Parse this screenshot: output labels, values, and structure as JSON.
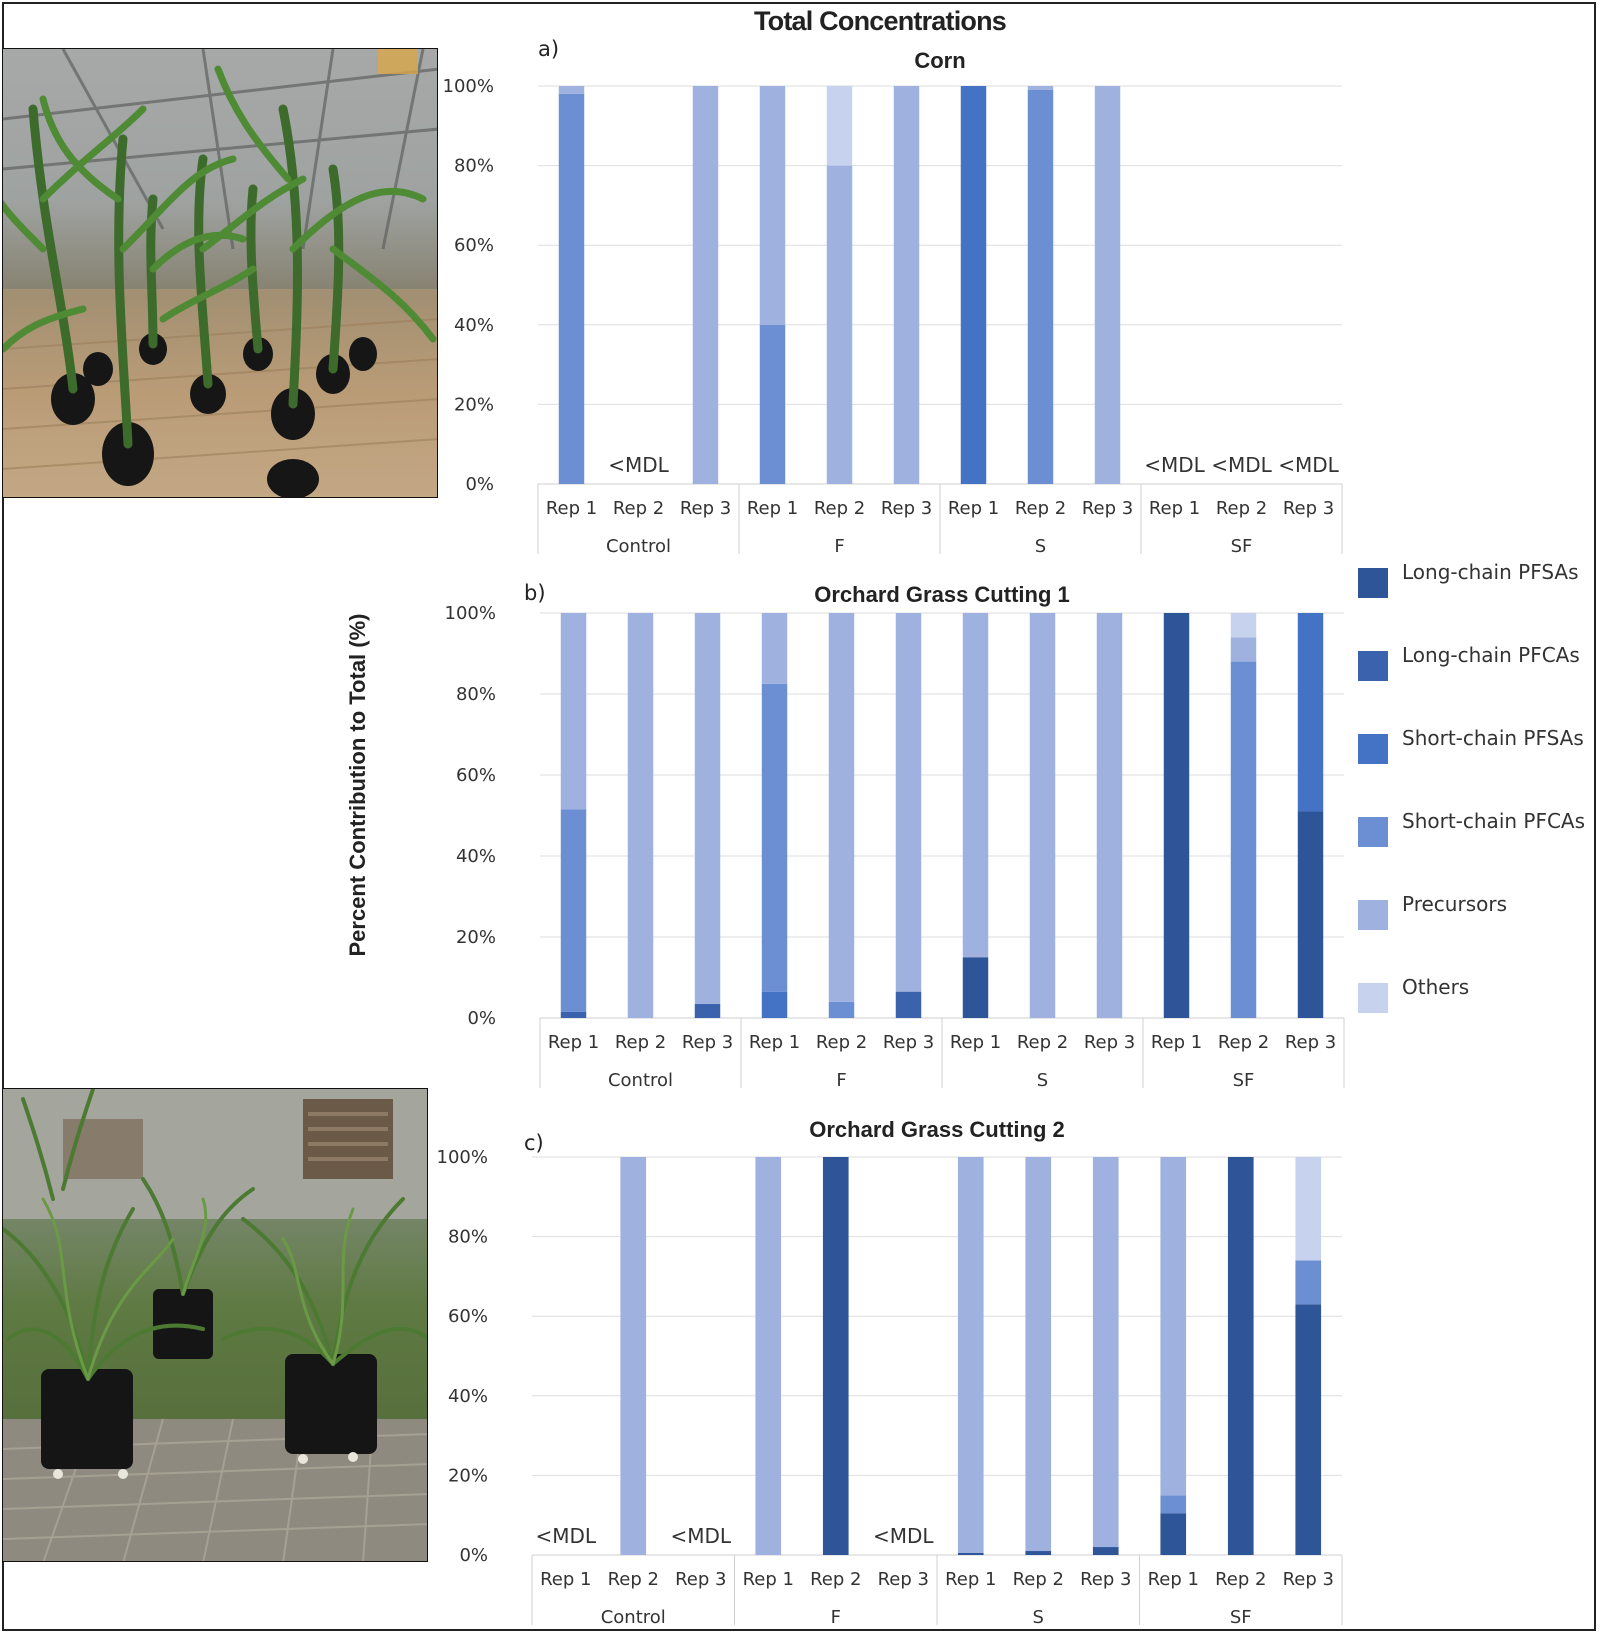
{
  "figure": {
    "title": "Total Concentrations",
    "y_axis_title": "Percent Contribution to Total (%)",
    "photos": [
      {
        "name": "corn-photo",
        "label": ""
      },
      {
        "name": "orchard-grass-photo",
        "label": ""
      }
    ]
  },
  "legend": {
    "entries": [
      {
        "label": "Long-chain PFSAs",
        "color": "#2e5597"
      },
      {
        "label": "Long-chain PFCAs",
        "color": "#3a62ad"
      },
      {
        "label": "Short-chain PFSAs",
        "color": "#4472c4"
      },
      {
        "label": "Short-chain PFCAs",
        "color": "#6c8ed3"
      },
      {
        "label": "Precursors",
        "color": "#9fb1de"
      },
      {
        "label": "Others",
        "color": "#c7d3ee"
      }
    ]
  },
  "chart_data": [
    {
      "type": "bar",
      "stacked": true,
      "letter": "a)",
      "title": "Corn",
      "ylim": [
        0,
        100
      ],
      "yticks": [
        "0%",
        "20%",
        "40%",
        "60%",
        "80%",
        "100%"
      ],
      "groups": [
        "Control",
        "F",
        "S",
        "SF"
      ],
      "categories": [
        "Rep 1",
        "Rep 2",
        "Rep 3",
        "Rep 1",
        "Rep 2",
        "Rep 3",
        "Rep 1",
        "Rep 2",
        "Rep 3",
        "Rep 1",
        "Rep 2",
        "Rep 3"
      ],
      "below_mdl_label": "<MDL",
      "below_mdl": [
        false,
        true,
        false,
        false,
        false,
        false,
        false,
        false,
        false,
        true,
        true,
        true
      ],
      "series": [
        {
          "name": "Long-chain PFSAs",
          "values": [
            0,
            0,
            0,
            0,
            0,
            0,
            0,
            0,
            0,
            0,
            0,
            0
          ]
        },
        {
          "name": "Long-chain PFCAs",
          "values": [
            0,
            0,
            0,
            0,
            0,
            0,
            0,
            0,
            0,
            0,
            0,
            0
          ]
        },
        {
          "name": "Short-chain PFSAs",
          "values": [
            0,
            0,
            0,
            0,
            0,
            0,
            100,
            0,
            0,
            0,
            0,
            0
          ]
        },
        {
          "name": "Short-chain PFCAs",
          "values": [
            98,
            0,
            0,
            40,
            0,
            0,
            0,
            99,
            0,
            0,
            0,
            0
          ]
        },
        {
          "name": "Precursors",
          "values": [
            2,
            0,
            100,
            60,
            80,
            100,
            0,
            1,
            100,
            0,
            0,
            0
          ]
        },
        {
          "name": "Others",
          "values": [
            0,
            0,
            0,
            0,
            20,
            0,
            0,
            0,
            0,
            0,
            0,
            0
          ]
        }
      ]
    },
    {
      "type": "bar",
      "stacked": true,
      "letter": "b)",
      "title": "Orchard Grass Cutting 1",
      "ylim": [
        0,
        100
      ],
      "yticks": [
        "0%",
        "20%",
        "40%",
        "60%",
        "80%",
        "100%"
      ],
      "groups": [
        "Control",
        "F",
        "S",
        "SF"
      ],
      "categories": [
        "Rep 1",
        "Rep 2",
        "Rep 3",
        "Rep 1",
        "Rep 2",
        "Rep 3",
        "Rep 1",
        "Rep 2",
        "Rep 3",
        "Rep 1",
        "Rep 2",
        "Rep 3"
      ],
      "below_mdl_label": "<MDL",
      "below_mdl": [
        false,
        false,
        false,
        false,
        false,
        false,
        false,
        false,
        false,
        false,
        false,
        false
      ],
      "series": [
        {
          "name": "Long-chain PFSAs",
          "values": [
            0,
            0,
            0,
            0,
            0,
            0,
            15,
            0,
            0,
            100,
            0,
            51
          ]
        },
        {
          "name": "Long-chain PFCAs",
          "values": [
            1.5,
            0,
            3.5,
            0,
            0,
            6.5,
            0,
            0,
            0,
            0,
            0,
            0
          ]
        },
        {
          "name": "Short-chain PFSAs",
          "values": [
            0,
            0,
            0,
            6.5,
            0,
            0,
            0,
            0,
            0,
            0,
            0,
            49
          ]
        },
        {
          "name": "Short-chain PFCAs",
          "values": [
            50,
            0,
            0,
            76,
            4,
            0,
            0,
            0,
            0,
            0,
            88,
            0
          ]
        },
        {
          "name": "Precursors",
          "values": [
            48.5,
            100,
            96.5,
            17.5,
            96,
            93.5,
            85,
            100,
            100,
            0,
            6,
            0
          ]
        },
        {
          "name": "Others",
          "values": [
            0,
            0,
            0,
            0,
            0,
            0,
            0,
            0,
            0,
            0,
            6,
            0
          ]
        }
      ]
    },
    {
      "type": "bar",
      "stacked": true,
      "letter": "c)",
      "title": "Orchard Grass Cutting 2",
      "ylim": [
        0,
        100
      ],
      "yticks": [
        "0%",
        "20%",
        "40%",
        "60%",
        "80%",
        "100%"
      ],
      "groups": [
        "Control",
        "F",
        "S",
        "SF"
      ],
      "categories": [
        "Rep 1",
        "Rep 2",
        "Rep 3",
        "Rep 1",
        "Rep 2",
        "Rep 3",
        "Rep 1",
        "Rep 2",
        "Rep 3",
        "Rep 1",
        "Rep 2",
        "Rep 3"
      ],
      "below_mdl_label": "<MDL",
      "below_mdl": [
        true,
        false,
        true,
        false,
        false,
        true,
        false,
        false,
        false,
        false,
        false,
        false
      ],
      "series": [
        {
          "name": "Long-chain PFSAs",
          "values": [
            0,
            0,
            0,
            0,
            100,
            0,
            0.5,
            1,
            2,
            10.5,
            100,
            63
          ]
        },
        {
          "name": "Long-chain PFCAs",
          "values": [
            0,
            0,
            0,
            0,
            0,
            0,
            0,
            0,
            0,
            0,
            0,
            0
          ]
        },
        {
          "name": "Short-chain PFSAs",
          "values": [
            0,
            0,
            0,
            0,
            0,
            0,
            0,
            0,
            0,
            0,
            0,
            0
          ]
        },
        {
          "name": "Short-chain PFCAs",
          "values": [
            0,
            0,
            0,
            0,
            0,
            0,
            0,
            0,
            0,
            4.5,
            0,
            11
          ]
        },
        {
          "name": "Precursors",
          "values": [
            0,
            100,
            0,
            100,
            0,
            0,
            99.5,
            99,
            98,
            85,
            0,
            0
          ]
        },
        {
          "name": "Others",
          "values": [
            0,
            0,
            0,
            0,
            0,
            0,
            0,
            0,
            0,
            0,
            0,
            26
          ]
        }
      ]
    }
  ]
}
